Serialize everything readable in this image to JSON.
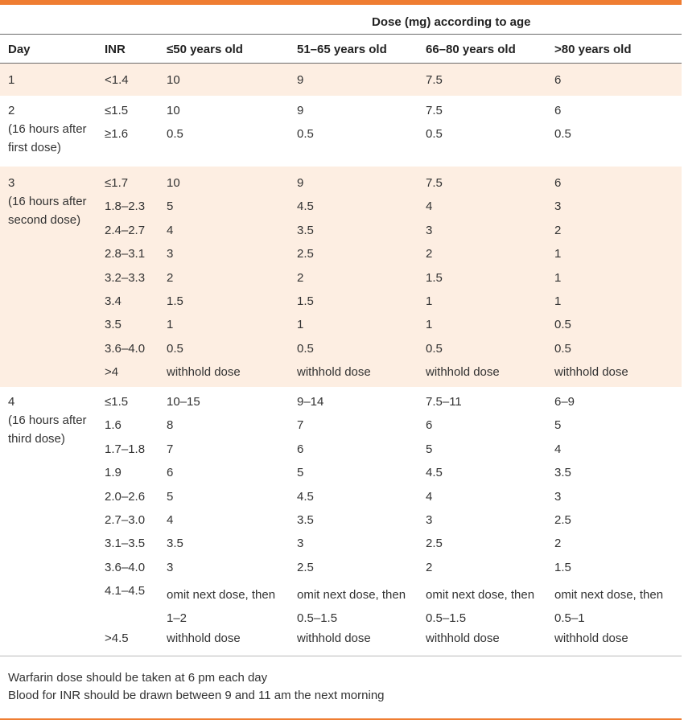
{
  "header": {
    "group_title": "Dose (mg) according to age",
    "columns": [
      "Day",
      "INR",
      "≤50 years old",
      "51–65 years old",
      "66–80 years old",
      ">80 years old"
    ]
  },
  "groups": [
    {
      "day": [
        "1"
      ],
      "rows": [
        [
          "<1.4",
          "10",
          "9",
          "7.5",
          "6"
        ]
      ]
    },
    {
      "day": [
        "2",
        "(16 hours after",
        "first dose)"
      ],
      "rows": [
        [
          "≤1.5",
          "10",
          "9",
          "7.5",
          "6"
        ],
        [
          "≥1.6",
          "0.5",
          "0.5",
          "0.5",
          "0.5"
        ]
      ]
    },
    {
      "day": [
        "3",
        "(16 hours after",
        "second dose)"
      ],
      "rows": [
        [
          "≤1.7",
          "10",
          "9",
          "7.5",
          "6"
        ],
        [
          "1.8–2.3",
          "5",
          "4.5",
          "4",
          "3"
        ],
        [
          "2.4–2.7",
          "4",
          "3.5",
          "3",
          "2"
        ],
        [
          "2.8–3.1",
          "3",
          "2.5",
          "2",
          "1"
        ],
        [
          "3.2–3.3",
          "2",
          "2",
          "1.5",
          "1"
        ],
        [
          "3.4",
          "1.5",
          "1.5",
          "1",
          "1"
        ],
        [
          "3.5",
          "1",
          "1",
          "1",
          "0.5"
        ],
        [
          "3.6–4.0",
          "0.5",
          "0.5",
          "0.5",
          "0.5"
        ],
        [
          ">4",
          "withhold dose",
          "withhold dose",
          "withhold dose",
          "withhold dose"
        ]
      ]
    },
    {
      "day": [
        "4",
        "(16 hours after",
        "third dose)"
      ],
      "rows": [
        [
          "≤1.5",
          "10–15",
          "9–14",
          "7.5–11",
          "6–9"
        ],
        [
          "1.6",
          "8",
          "7",
          "6",
          "5"
        ],
        [
          "1.7–1.8",
          "7",
          "6",
          "5",
          "4"
        ],
        [
          "1.9",
          "6",
          "5",
          "4.5",
          "3.5"
        ],
        [
          "2.0–2.6",
          "5",
          "4.5",
          "4",
          "3"
        ],
        [
          "2.7–3.0",
          "4",
          "3.5",
          "3",
          "2.5"
        ],
        [
          "3.1–3.5",
          "3.5",
          "3",
          "2.5",
          "2"
        ],
        [
          "3.6–4.0",
          "3",
          "2.5",
          "2",
          "1.5"
        ],
        [
          "4.1–4.5",
          "omit next dose, then\n1–2",
          "omit next dose, then\n0.5–1.5",
          "omit next dose, then\n0.5–1.5",
          "omit next dose, then\n0.5–1"
        ],
        [
          ">4.5",
          "withhold dose",
          "withhold dose",
          "withhold dose",
          "withhold dose"
        ]
      ]
    }
  ],
  "footnotes": [
    "Warfarin dose should be taken at 6 pm each day",
    "Blood for INR should be drawn between 9 and 11 am the next morning"
  ],
  "colors": {
    "accent": "#ef7d32",
    "band": "#fdeee2"
  }
}
